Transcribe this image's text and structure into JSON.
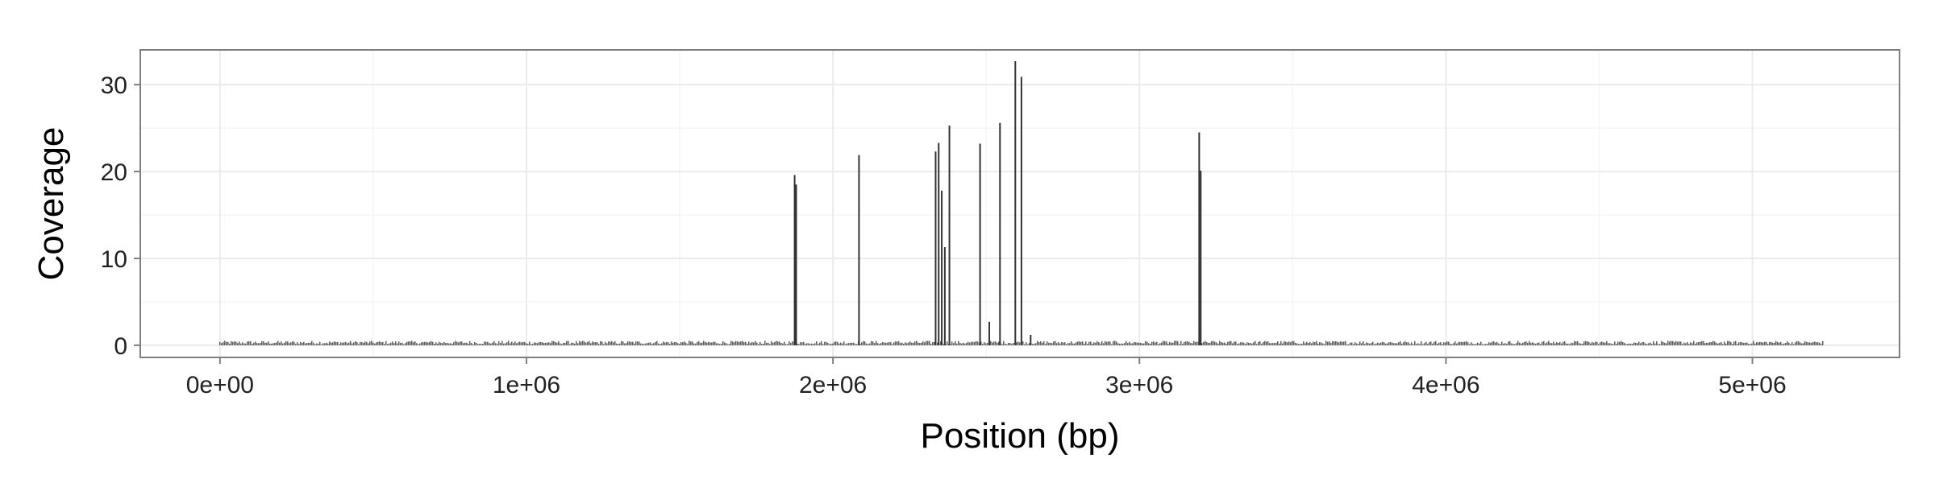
{
  "chart_data": {
    "type": "bar",
    "xlabel": "Position (bp)",
    "ylabel": "Coverage",
    "xlim": [
      -260000,
      5480000
    ],
    "ylim": [
      -1.4,
      34.0
    ],
    "x_ticks": [
      0,
      1000000,
      2000000,
      3000000,
      4000000,
      5000000
    ],
    "x_tick_labels": [
      "0e+00",
      "1e+06",
      "2e+06",
      "3e+06",
      "4e+06",
      "5e+06"
    ],
    "y_ticks": [
      0,
      10,
      20,
      30
    ],
    "y_tick_labels": [
      "0",
      "10",
      "20",
      "30"
    ],
    "grid": true,
    "bar_color": "#333333",
    "genome_end": 5230000,
    "baseline_coverage": 0.3,
    "peaks": [
      {
        "x": 1875000,
        "y": 19.6
      },
      {
        "x": 1880000,
        "y": 18.5
      },
      {
        "x": 2085000,
        "y": 21.9
      },
      {
        "x": 2335000,
        "y": 22.3
      },
      {
        "x": 2345000,
        "y": 23.3
      },
      {
        "x": 2355000,
        "y": 17.8
      },
      {
        "x": 2365000,
        "y": 11.3
      },
      {
        "x": 2380000,
        "y": 25.3
      },
      {
        "x": 2480000,
        "y": 23.2
      },
      {
        "x": 2510000,
        "y": 2.7
      },
      {
        "x": 2545000,
        "y": 25.6
      },
      {
        "x": 2595000,
        "y": 32.7
      },
      {
        "x": 2615000,
        "y": 30.9
      },
      {
        "x": 2645000,
        "y": 1.2
      },
      {
        "x": 3195000,
        "y": 24.5
      },
      {
        "x": 3200000,
        "y": 20.1
      }
    ]
  },
  "colors": {
    "panel_background": "#ffffff",
    "panel_border": "#7f7f7f",
    "grid_major": "#ebebeb",
    "grid_minor": "#f5f5f5"
  }
}
